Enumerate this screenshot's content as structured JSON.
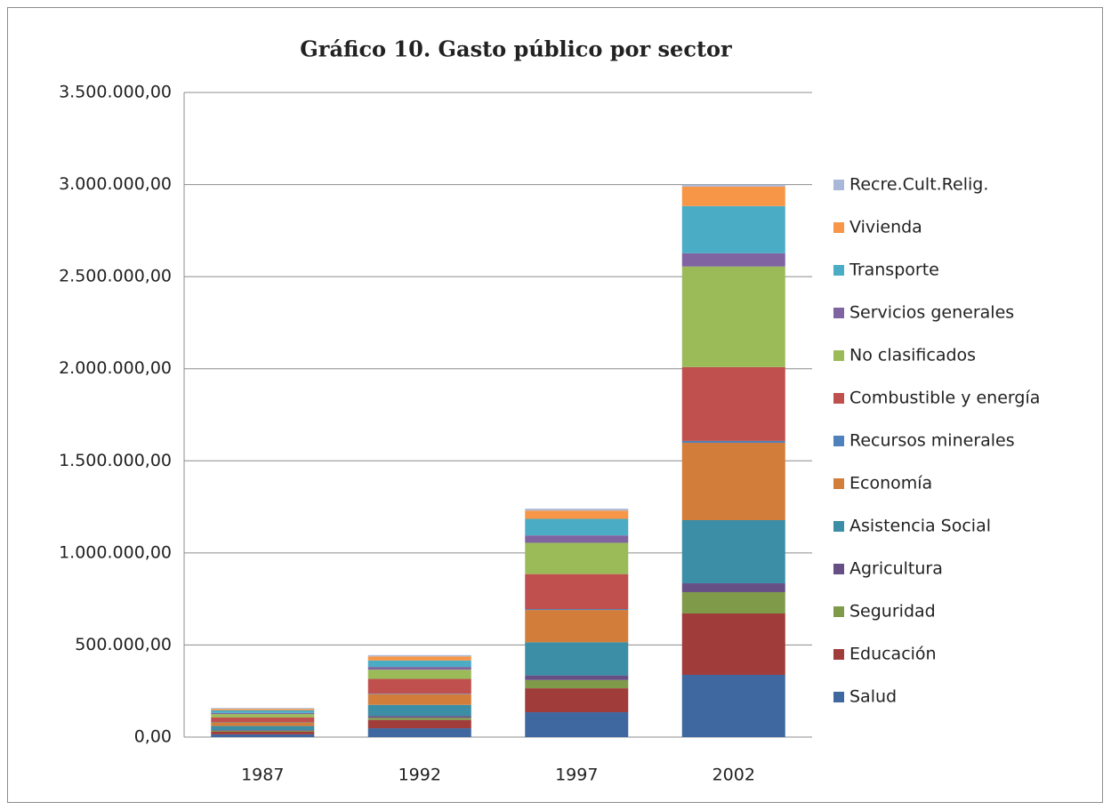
{
  "chart_data": {
    "type": "stacked-bar",
    "title": "Gráfico 10. Gasto público por sector",
    "categories": [
      "1987",
      "1992",
      "1997",
      "2002"
    ],
    "series": [
      {
        "name": "Salud",
        "color": "#4068a0",
        "values": [
          15000,
          48000,
          135000,
          338000
        ]
      },
      {
        "name": "Educación",
        "color": "#a03c3a",
        "values": [
          14000,
          45000,
          130000,
          333000
        ]
      },
      {
        "name": "Seguridad",
        "color": "#7f9a48",
        "values": [
          5000,
          12000,
          45000,
          116000
        ]
      },
      {
        "name": "Agricultura",
        "color": "#654f85",
        "values": [
          4000,
          10000,
          25000,
          48000
        ]
      },
      {
        "name": "Asistencia Social",
        "color": "#3b8ea5",
        "values": [
          22000,
          60000,
          180000,
          343000
        ]
      },
      {
        "name": "Economía",
        "color": "#d37d3a",
        "values": [
          20000,
          58000,
          175000,
          420000
        ]
      },
      {
        "name": "Recursos minerales",
        "color": "#4f81bd",
        "values": [
          2000,
          3000,
          5000,
          10000
        ]
      },
      {
        "name": "Combustible y energía",
        "color": "#c0504d",
        "values": [
          25000,
          80000,
          190000,
          401000
        ]
      },
      {
        "name": "No clasificados",
        "color": "#9bbb59",
        "values": [
          18000,
          50000,
          170000,
          546000
        ]
      },
      {
        "name": "Servicios generales",
        "color": "#8064a2",
        "values": [
          6000,
          15000,
          40000,
          72000
        ]
      },
      {
        "name": "Transporte",
        "color": "#4bacc6",
        "values": [
          14000,
          35000,
          90000,
          256000
        ]
      },
      {
        "name": "Vivienda",
        "color": "#f79646",
        "values": [
          8000,
          22000,
          45000,
          106000
        ]
      },
      {
        "name": "Recre.Cult.Relig.",
        "color": "#a9b8d8",
        "values": [
          5000,
          7000,
          10000,
          10000
        ]
      }
    ],
    "ylim": [
      0,
      3500000
    ],
    "yticks": [
      {
        "value": 0,
        "label": "0,00"
      },
      {
        "value": 500000,
        "label": "500.000,00"
      },
      {
        "value": 1000000,
        "label": "1.000.000,00"
      },
      {
        "value": 1500000,
        "label": "1.500.000,00"
      },
      {
        "value": 2000000,
        "label": "2.000.000,00"
      },
      {
        "value": 2500000,
        "label": "2.500.000,00"
      },
      {
        "value": 3000000,
        "label": "3.000.000,00"
      },
      {
        "value": 3500000,
        "label": "3.500.000,00"
      }
    ],
    "grid": true
  }
}
